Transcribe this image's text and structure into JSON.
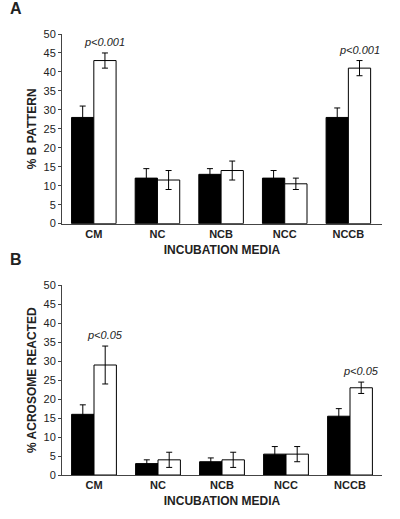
{
  "chart_data": [
    {
      "type": "bar",
      "title": "A",
      "categories": [
        "CM",
        "NC",
        "NCB",
        "NCC",
        "NCCB"
      ],
      "series": [
        {
          "color": "#000000",
          "values": [
            28,
            12,
            13,
            12,
            28
          ],
          "errors": [
            3,
            2.5,
            1.5,
            2,
            2.5
          ]
        },
        {
          "color": "#ffffff",
          "values": [
            43,
            11.5,
            14,
            10.5,
            41
          ],
          "errors": [
            2,
            2.5,
            2.5,
            1.5,
            2
          ]
        }
      ],
      "xlabel": "INCUBATION MEDIA",
      "ylabel": "% B PATTERN",
      "ylim": [
        0,
        50
      ],
      "yticks": [
        0,
        5,
        10,
        15,
        20,
        25,
        30,
        35,
        40,
        45,
        50
      ],
      "grid": false,
      "annotations": [
        {
          "category": "CM",
          "text": "p<0.001"
        },
        {
          "category": "NCCB",
          "text": "p<0.001"
        }
      ]
    },
    {
      "type": "bar",
      "title": "B",
      "categories": [
        "CM",
        "NC",
        "NCB",
        "NCC",
        "NCCB"
      ],
      "series": [
        {
          "color": "#000000",
          "values": [
            16,
            3,
            3.5,
            5.5,
            15.5
          ],
          "errors": [
            2.5,
            1,
            1,
            2,
            2
          ]
        },
        {
          "color": "#ffffff",
          "values": [
            29,
            4,
            4,
            5.5,
            23
          ],
          "errors": [
            5,
            2,
            2,
            2,
            1.5
          ]
        }
      ],
      "xlabel": "INCUBATION MEDIA",
      "ylabel": "% ACROSOME REACTED",
      "ylim": [
        0,
        50
      ],
      "yticks": [
        0,
        5,
        10,
        15,
        20,
        25,
        30,
        35,
        40,
        45,
        50
      ],
      "grid": false,
      "annotations": [
        {
          "category": "CM",
          "text": "p<0.05"
        },
        {
          "category": "NCCB",
          "text": "p<0.05"
        }
      ]
    }
  ]
}
